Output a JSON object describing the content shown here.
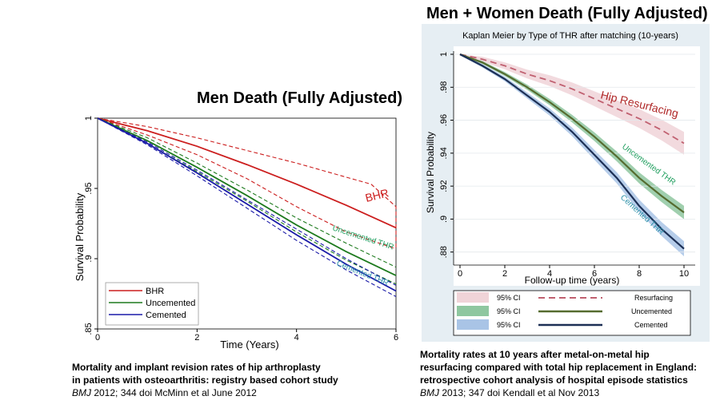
{
  "headings": {
    "left": "Men Death (Fully Adjusted)",
    "right": "Men + Women Death (Fully Adjusted)"
  },
  "captions": {
    "left": {
      "line1": "Mortality and implant revision rates of hip arthroplasty",
      "line2": "in patients with osteoarthritis: registry based cohort study",
      "journal": "BMJ",
      "ref": " 2012; 344 doi McMinn et al June 2012"
    },
    "right": {
      "line1": "Mortality rates at 10 years after metal-on-metal hip",
      "line2": "resurfacing compared with total hip replacement in England:",
      "line3": "retrospective cohort analysis of hospital episode statistics",
      "journal": "BMJ",
      "ref": " 2013; 347 doi Kendall et al Nov 2013"
    }
  },
  "colors": {
    "bhr": "#cc1e1e",
    "uncemented": "#1d7a1d",
    "cemented": "#1a1aa8",
    "resurf_line": "#c06070",
    "resurf_band": "#f0d4d8",
    "unc_line": "#556b2f",
    "unc_band": "#8fc7a0",
    "cem_line": "#1c2f55",
    "cem_band": "#a9c4e6",
    "uncemented_label": "#1f9e5e",
    "cemented_label": "#2a8fa8"
  },
  "chart_data": [
    {
      "type": "line",
      "xlabel": "Time (Years)",
      "ylabel": "Survival Probability",
      "xlim": [
        0,
        6
      ],
      "ylim": [
        0.85,
        1.0
      ],
      "x_ticks": [
        "0",
        "2",
        "4",
        "6"
      ],
      "y_ticks": [
        "1",
        ".95",
        ".9",
        ".85"
      ],
      "legend_position": "bottom-left",
      "annotations": [
        "BHR",
        "Uncemented THR",
        "Cemented THR"
      ],
      "series": [
        {
          "name": "BHR",
          "style": "solid",
          "x": [
            0,
            1,
            2,
            3,
            4,
            5,
            6
          ],
          "y": [
            1,
            0.991,
            0.98,
            0.967,
            0.953,
            0.938,
            0.922
          ]
        },
        {
          "name": "BHR upper",
          "style": "dashed",
          "x": [
            0,
            1,
            2,
            3,
            4,
            5,
            5.5,
            6,
            6
          ],
          "y": [
            1,
            0.994,
            0.986,
            0.977,
            0.968,
            0.958,
            0.953,
            0.937,
            0.907
          ]
        },
        {
          "name": "BHR lower",
          "style": "dashed",
          "x": [
            0,
            1,
            2,
            3,
            4,
            5,
            6
          ],
          "y": [
            1,
            0.988,
            0.974,
            0.957,
            0.937,
            0.919,
            0.907
          ]
        },
        {
          "name": "Uncemented",
          "style": "solid",
          "x": [
            0,
            1,
            2,
            3,
            4,
            5,
            6
          ],
          "y": [
            1,
            0.984,
            0.965,
            0.945,
            0.924,
            0.905,
            0.888
          ]
        },
        {
          "name": "Uncemented upper",
          "style": "dashed",
          "x": [
            0,
            1,
            2,
            3,
            4,
            5,
            6
          ],
          "y": [
            1,
            0.986,
            0.968,
            0.949,
            0.929,
            0.911,
            0.894
          ]
        },
        {
          "name": "Uncemented lower",
          "style": "dashed",
          "x": [
            0,
            1,
            2,
            3,
            4,
            5,
            6
          ],
          "y": [
            1,
            0.982,
            0.962,
            0.941,
            0.919,
            0.899,
            0.882
          ]
        },
        {
          "name": "Cemented",
          "style": "solid",
          "x": [
            0,
            1,
            2,
            3,
            4,
            5,
            6
          ],
          "y": [
            1,
            0.982,
            0.961,
            0.939,
            0.917,
            0.896,
            0.877
          ]
        },
        {
          "name": "Cemented upper",
          "style": "dashed",
          "x": [
            0,
            1,
            2,
            3,
            4,
            5,
            6
          ],
          "y": [
            1,
            0.983,
            0.963,
            0.942,
            0.921,
            0.9,
            0.881
          ]
        },
        {
          "name": "Cemented lower",
          "style": "dashed",
          "x": [
            0,
            1,
            2,
            3,
            4,
            5,
            6
          ],
          "y": [
            1,
            0.981,
            0.959,
            0.936,
            0.913,
            0.892,
            0.873
          ]
        }
      ],
      "legend": [
        "BHR",
        "Uncemented",
        "Cemented"
      ]
    },
    {
      "type": "line",
      "title": "Kaplan Meier by Type of THR after matching (10-years)",
      "xlabel": "Follow-up time (years)",
      "ylabel": "Survival Probability",
      "xlim": [
        0,
        10
      ],
      "ylim": [
        0.875,
        1.0
      ],
      "x_ticks": [
        "0",
        "2",
        "4",
        "6",
        "8",
        "10"
      ],
      "y_ticks": [
        "1",
        ".98",
        ".96",
        ".94",
        ".92",
        ".9",
        ".88"
      ],
      "legend_position": "bottom",
      "annotations": [
        "Hip Resurfacing",
        "Uncemented THR",
        "Cemented THR"
      ],
      "series": [
        {
          "name": "Resurfacing",
          "style": "dashed",
          "x": [
            0,
            1,
            2,
            3,
            4,
            5,
            6,
            7,
            8,
            9,
            10
          ],
          "y": [
            1,
            0.997,
            0.993,
            0.988,
            0.984,
            0.979,
            0.973,
            0.967,
            0.961,
            0.954,
            0.946
          ],
          "ci": 0.006
        },
        {
          "name": "Uncemented",
          "style": "solid",
          "x": [
            0,
            1,
            2,
            3,
            4,
            5,
            6,
            7,
            8,
            9,
            10
          ],
          "y": [
            1,
            0.995,
            0.988,
            0.98,
            0.971,
            0.961,
            0.95,
            0.938,
            0.925,
            0.914,
            0.904
          ],
          "ci": 0.0035
        },
        {
          "name": "Cemented",
          "style": "solid",
          "x": [
            0,
            1,
            2,
            3,
            4,
            5,
            6,
            7,
            8,
            9,
            10
          ],
          "y": [
            1,
            0.993,
            0.985,
            0.975,
            0.965,
            0.953,
            0.939,
            0.925,
            0.908,
            0.894,
            0.882
          ],
          "ci": 0.004
        }
      ],
      "legend": [
        {
          "ci": "95% CI",
          "label": "Resurfacing"
        },
        {
          "ci": "95% CI",
          "label": "Uncemented"
        },
        {
          "ci": "95% CI",
          "label": "Cemented"
        }
      ]
    }
  ]
}
